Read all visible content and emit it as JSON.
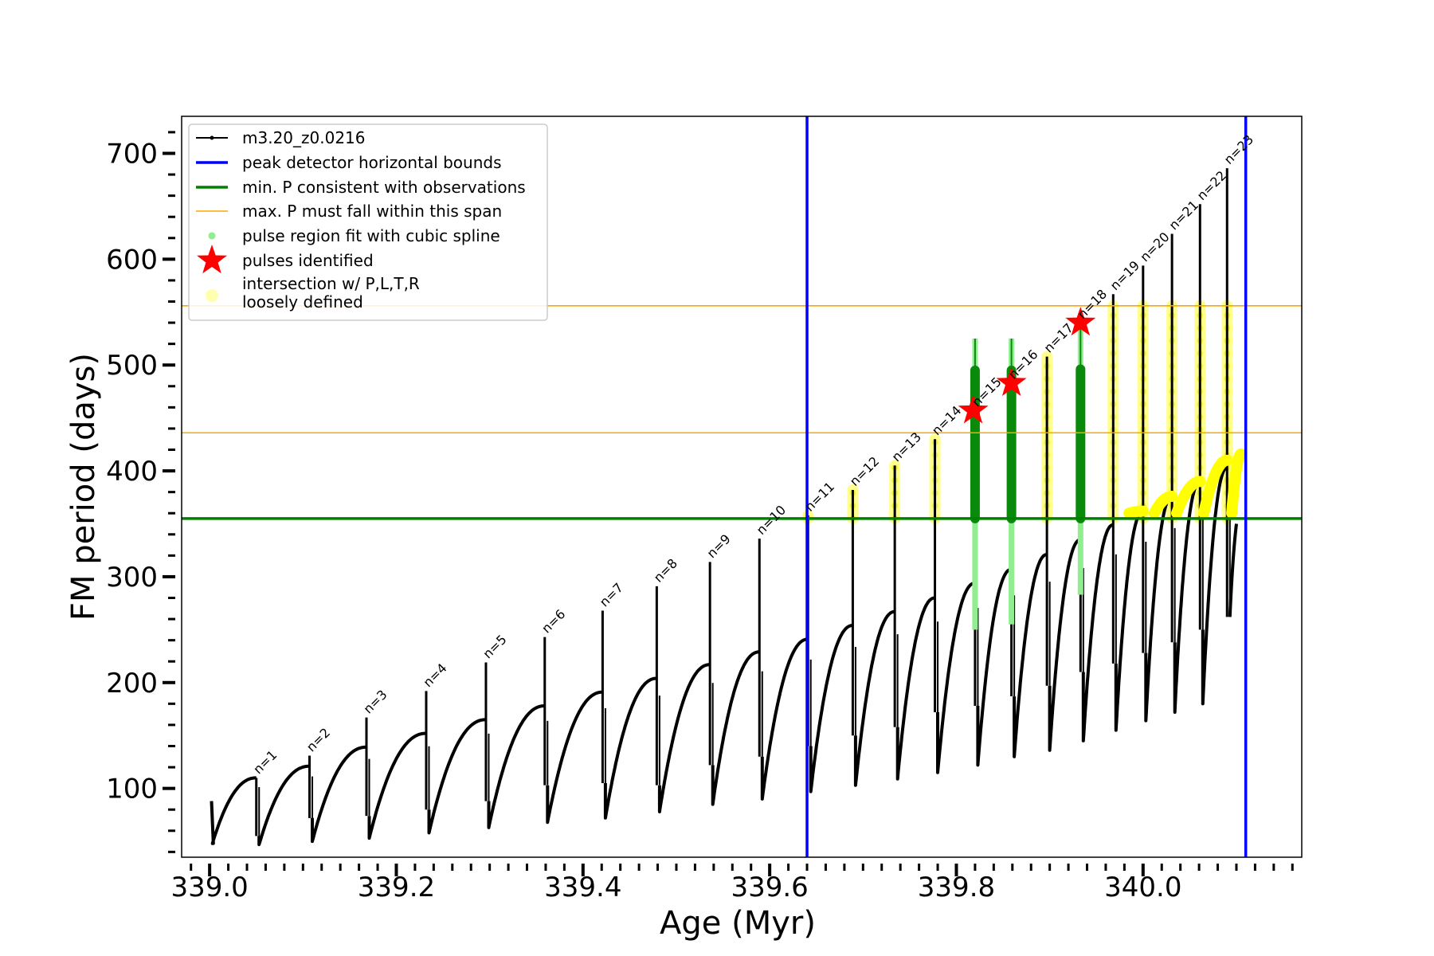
{
  "chart_data": {
    "type": "line",
    "xlabel": "Age (Myr)",
    "ylabel": "FM period (days)",
    "xlim": [
      338.97,
      340.17
    ],
    "ylim": [
      35,
      735
    ],
    "xticks": [
      339.0,
      339.2,
      339.4,
      339.6,
      339.8,
      340.0
    ],
    "xtick_labels": [
      "339.0",
      "339.2",
      "339.4",
      "339.6",
      "339.8",
      "340.0"
    ],
    "yticks": [
      100,
      200,
      300,
      400,
      500,
      600,
      700
    ],
    "ytick_labels": [
      "100",
      "200",
      "300",
      "400",
      "500",
      "600",
      "700"
    ],
    "grid": false,
    "legend_position": "top-left",
    "legend": [
      {
        "label": "m3.20_z0.0216",
        "kind": "line-dot",
        "color": "#000000"
      },
      {
        "label": "peak detector horizontal bounds",
        "kind": "line",
        "color": "#0000ff"
      },
      {
        "label": "min. P consistent with observations",
        "kind": "line",
        "color": "#008000"
      },
      {
        "label": "max. P must fall within this span",
        "kind": "line-thin",
        "color": "#ffa500"
      },
      {
        "label": "pulse region fit with cubic spline",
        "kind": "dot",
        "color": "#90ee90"
      },
      {
        "label": "pulses identified",
        "kind": "star",
        "color": "#ff0000"
      },
      {
        "label": "intersection w/ P,L,T,R",
        "label2": "loosely defined",
        "kind": "circle",
        "color": "#ffff99"
      }
    ],
    "vertical_lines": [
      {
        "x": 339.64,
        "color": "#0000ff",
        "label": "peak detector horizontal bounds"
      },
      {
        "x": 340.11,
        "color": "#0000ff",
        "label": "peak detector horizontal bounds"
      }
    ],
    "horizontal_lines": [
      {
        "y": 355,
        "color": "#008000",
        "label": "min. P consistent with observations"
      },
      {
        "y": 436,
        "color": "#ffa500",
        "label": "max. P must fall within this span"
      },
      {
        "y": 556,
        "color": "#ffa500",
        "label": "max. P must fall within this span"
      }
    ],
    "series": [
      {
        "name": "m3.20_z0.0216",
        "color": "#000000",
        "pulses": [
          {
            "n": 1,
            "x": 339.05,
            "start": 48,
            "peak": 110,
            "spike": 110,
            "drop": 55
          },
          {
            "n": 2,
            "x": 339.107,
            "start": 47,
            "peak": 121,
            "spike": 131,
            "drop": 72
          },
          {
            "n": 3,
            "x": 339.168,
            "start": 50,
            "peak": 139,
            "spike": 167,
            "drop": 74
          },
          {
            "n": 4,
            "x": 339.232,
            "start": 53,
            "peak": 152,
            "spike": 192,
            "drop": 80
          },
          {
            "n": 5,
            "x": 339.296,
            "start": 58,
            "peak": 165,
            "spike": 219,
            "drop": 88
          },
          {
            "n": 6,
            "x": 339.359,
            "start": 63,
            "peak": 178,
            "spike": 243,
            "drop": 103
          },
          {
            "n": 7,
            "x": 339.421,
            "start": 68,
            "peak": 191,
            "spike": 268,
            "drop": 105
          },
          {
            "n": 8,
            "x": 339.479,
            "start": 72,
            "peak": 204,
            "spike": 291,
            "drop": 103
          },
          {
            "n": 9,
            "x": 339.536,
            "start": 78,
            "peak": 217,
            "spike": 314,
            "drop": 122
          },
          {
            "n": 10,
            "x": 339.589,
            "start": 85,
            "peak": 229,
            "spike": 336,
            "drop": 130
          },
          {
            "n": 11,
            "x": 339.641,
            "start": 90,
            "peak": 241,
            "spike": 358,
            "drop": 140
          },
          {
            "n": 12,
            "x": 339.689,
            "start": 97,
            "peak": 254,
            "spike": 382,
            "drop": 150
          },
          {
            "n": 13,
            "x": 339.734,
            "start": 103,
            "peak": 267,
            "spike": 405,
            "drop": 158
          },
          {
            "n": 14,
            "x": 339.777,
            "start": 109,
            "peak": 280,
            "spike": 430,
            "drop": 172
          },
          {
            "n": 15,
            "x": 339.82,
            "start": 115,
            "peak": 294,
            "spike": 457,
            "drop": 178
          },
          {
            "n": 16,
            "x": 339.859,
            "start": 122,
            "peak": 307,
            "spike": 483,
            "drop": 187
          },
          {
            "n": 17,
            "x": 339.897,
            "start": 130,
            "peak": 321,
            "spike": 508,
            "drop": 197
          },
          {
            "n": 18,
            "x": 339.933,
            "start": 136,
            "peak": 335,
            "spike": 540,
            "drop": 210
          },
          {
            "n": 19,
            "x": 339.968,
            "start": 145,
            "peak": 349,
            "spike": 567,
            "drop": 218
          },
          {
            "n": 20,
            "x": 340.0,
            "start": 155,
            "peak": 362,
            "spike": 594,
            "drop": 228
          },
          {
            "n": 21,
            "x": 340.031,
            "start": 164,
            "peak": 376,
            "spike": 624,
            "drop": 238
          },
          {
            "n": 22,
            "x": 340.061,
            "start": 172,
            "peak": 390,
            "spike": 652,
            "drop": 250
          },
          {
            "n": 23,
            "x": 340.09,
            "start": 180,
            "peak": 403,
            "spike": 686,
            "drop": 262
          }
        ],
        "end": {
          "x": 340.1,
          "y": 350
        }
      },
      {
        "name": "pulse region fit with cubic spline",
        "color": "#90ee90",
        "regions": [
          {
            "x": 339.82,
            "ymin": 250,
            "ymax": 525
          },
          {
            "x": 339.859,
            "ymin": 255,
            "ymax": 525
          },
          {
            "x": 339.933,
            "ymin": 283,
            "ymax": 540
          }
        ]
      },
      {
        "name": "pulses identified",
        "color": "#ff0000",
        "points": [
          {
            "x": 339.818,
            "y": 457
          },
          {
            "x": 339.859,
            "y": 483
          },
          {
            "x": 339.933,
            "y": 540
          }
        ]
      },
      {
        "name": "intersection w/ P,L,T,R loosely defined",
        "color": "#ffff00",
        "columns": [
          {
            "x": 339.641,
            "ymin": 355,
            "ymax": 358
          },
          {
            "x": 339.689,
            "ymin": 355,
            "ymax": 382
          },
          {
            "x": 339.734,
            "ymin": 355,
            "ymax": 405
          },
          {
            "x": 339.777,
            "ymin": 355,
            "ymax": 430
          },
          {
            "x": 339.897,
            "ymin": 355,
            "ymax": 508
          },
          {
            "x": 339.968,
            "ymin": 355,
            "ymax": 556
          },
          {
            "x": 340.0,
            "ymin": 355,
            "ymax": 556
          },
          {
            "x": 340.031,
            "ymin": 355,
            "ymax": 556
          },
          {
            "x": 340.061,
            "ymin": 355,
            "ymax": 556
          },
          {
            "x": 340.09,
            "ymin": 355,
            "ymax": 556
          }
        ],
        "arcs": [
          {
            "x0": 339.985,
            "x1": 340.0,
            "ymax": 362
          },
          {
            "x0": 340.012,
            "x1": 340.031,
            "ymax": 376
          },
          {
            "x0": 340.036,
            "x1": 340.061,
            "ymax": 390
          },
          {
            "x0": 340.065,
            "x1": 340.09,
            "ymax": 410
          },
          {
            "x0": 340.095,
            "x1": 340.105,
            "ymax": 416
          }
        ]
      }
    ]
  }
}
